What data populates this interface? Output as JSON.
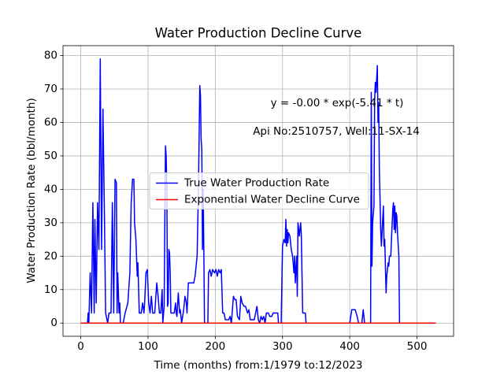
{
  "chart_data": {
    "type": "line",
    "title": "Water Production Decline Curve",
    "xlabel": "Time (months) from:1/1979 to:12/2023",
    "ylabel": "Water Production Rate (bbl/month)",
    "annotations": [
      "y = -0.00 * exp(-5.41 * t)",
      "Api No:2510757, Well:11-SX-14"
    ],
    "xlim": [
      -26.4,
      554.4
    ],
    "ylim": [
      -3.95,
      82.95
    ],
    "xticks": [
      0,
      100,
      200,
      300,
      400,
      500
    ],
    "yticks": [
      0,
      10,
      20,
      30,
      40,
      50,
      60,
      70,
      80
    ],
    "grid": true,
    "legend": "center",
    "series": [
      {
        "name": "True Water Production Rate",
        "color": "#0000ff",
        "x": [
          0,
          10,
          11,
          12,
          14,
          16,
          18,
          20,
          21,
          23,
          25,
          27,
          29,
          31,
          33,
          35,
          37,
          40,
          42,
          45,
          47,
          49,
          51,
          53,
          54,
          55,
          57,
          58,
          59,
          63,
          66,
          70,
          73,
          75,
          77,
          79,
          80,
          82,
          84,
          85,
          87,
          90,
          92,
          94,
          95,
          97,
          99,
          101,
          103,
          105,
          107,
          110,
          113,
          115,
          117,
          119,
          121,
          122,
          124,
          125,
          126,
          127,
          128,
          129,
          130,
          131,
          132,
          133,
          134,
          137,
          139,
          141,
          142,
          143,
          145,
          147,
          148,
          150,
          153,
          155,
          157,
          158,
          160,
          163,
          168,
          170,
          173,
          175,
          177,
          178,
          179,
          180,
          181,
          182,
          183,
          184,
          189,
          190,
          192,
          194,
          196,
          199,
          201,
          203,
          205,
          207,
          209,
          211,
          213,
          215,
          220,
          222,
          224,
          227,
          229,
          231,
          233,
          236,
          238,
          240,
          243,
          245,
          248,
          250,
          252,
          258,
          260,
          262,
          264,
          266,
          268,
          270,
          272,
          274,
          276,
          279,
          281,
          284,
          286,
          293,
          294,
          298,
          300,
          302,
          304,
          305,
          306,
          307,
          308,
          309,
          311,
          313,
          315,
          317,
          318,
          319,
          321,
          322,
          323,
          325,
          327,
          328,
          330,
          332,
          334,
          335,
          400,
          403,
          408,
          411,
          413,
          418,
          420,
          422,
          431,
          432,
          433,
          434,
          436,
          437,
          438,
          439,
          441,
          442,
          443,
          444,
          446,
          447,
          448,
          450,
          451,
          452,
          454,
          455,
          457,
          458,
          459,
          461,
          462,
          464,
          465,
          466,
          467,
          468,
          469,
          470,
          471,
          473,
          474,
          528
        ],
        "values": [
          0,
          0,
          3,
          0,
          15,
          3,
          36,
          3,
          31,
          6,
          36,
          22,
          79,
          22,
          64,
          35,
          3,
          0,
          3,
          3,
          36,
          3,
          43,
          42,
          3,
          15,
          3,
          6,
          0,
          0,
          3,
          6,
          15,
          36,
          43,
          43,
          30,
          25,
          14,
          18,
          3,
          3,
          6,
          3,
          6,
          15,
          16,
          6,
          3,
          8,
          3,
          3,
          12,
          8,
          3,
          3,
          10,
          0,
          5,
          30,
          53,
          50,
          40,
          5,
          6,
          22,
          21,
          15,
          3,
          3,
          3,
          6,
          3,
          2,
          9,
          3,
          4,
          0,
          4,
          8,
          6,
          3,
          12,
          12,
          12,
          14,
          20,
          40,
          71,
          68,
          55,
          52,
          22,
          40,
          22,
          0,
          0,
          15,
          16,
          14,
          16,
          15,
          16,
          14,
          16,
          15,
          16,
          3,
          3,
          1,
          1,
          2,
          0,
          8,
          7,
          7,
          2,
          1,
          8,
          6,
          5,
          5,
          3,
          4,
          1,
          1,
          3,
          5,
          1,
          0,
          2,
          1,
          2,
          0,
          3,
          3,
          2,
          2,
          3,
          3,
          0,
          0,
          23,
          25,
          24,
          31,
          23,
          28,
          24,
          27,
          26,
          22,
          20,
          15,
          20,
          12,
          20,
          8,
          30,
          26,
          30,
          26,
          3,
          3,
          3,
          0,
          0,
          4,
          4,
          2,
          0,
          0,
          4,
          0,
          0,
          69,
          17,
          30,
          35,
          67,
          72,
          69,
          77,
          60,
          66,
          46,
          28,
          23,
          27,
          35,
          23,
          25,
          9,
          14,
          18,
          17,
          20,
          20,
          25,
          34,
          36,
          28,
          35,
          27,
          33,
          32,
          27,
          20,
          0,
          0
        ]
      },
      {
        "name": "Exponential Water Decline Curve",
        "color": "#ff0000",
        "x": [
          0,
          528
        ],
        "values": [
          0,
          0
        ]
      }
    ]
  }
}
